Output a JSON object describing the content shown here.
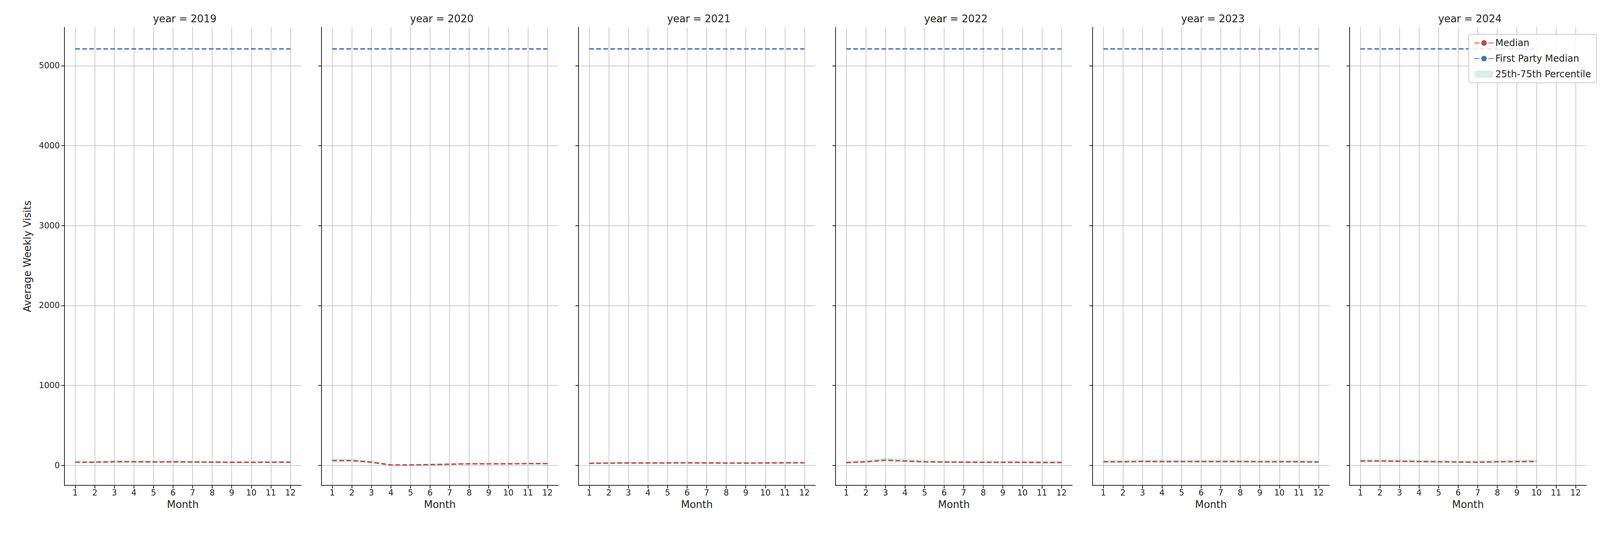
{
  "chart_data": [
    {
      "type": "line",
      "title": "year = 2019",
      "xlabel": "Month",
      "ylabel": "Average Weekly Visits",
      "x": [
        1,
        2,
        3,
        4,
        5,
        6,
        7,
        8,
        9,
        10,
        11,
        12
      ],
      "series": [
        {
          "name": "Median",
          "color": "#c8464b",
          "line_style": "dashed",
          "values": [
            40,
            40,
            45,
            45,
            43,
            45,
            42,
            40,
            38,
            38,
            40,
            40
          ]
        },
        {
          "name": "First Party Median",
          "color": "#4a72b2",
          "line_style": "dashed",
          "values": [
            5210,
            5210,
            5210,
            5210,
            5210,
            5210,
            5210,
            5210,
            5210,
            5210,
            5210,
            5210
          ]
        },
        {
          "name": "25th-75th Percentile",
          "type": "area",
          "color": "#a8dcd1",
          "lower": [
            25,
            25,
            28,
            28,
            27,
            28,
            26,
            25,
            24,
            24,
            25,
            25
          ],
          "upper": [
            60,
            60,
            65,
            65,
            63,
            65,
            62,
            60,
            58,
            58,
            60,
            60
          ]
        }
      ],
      "xlim": [
        0.45,
        12.55
      ],
      "ylim": [
        -250,
        5480
      ],
      "xticks": [
        1,
        2,
        3,
        4,
        5,
        6,
        7,
        8,
        9,
        10,
        11,
        12
      ],
      "yticks": [
        0,
        1000,
        2000,
        3000,
        4000,
        5000
      ],
      "grid": true
    },
    {
      "type": "line",
      "title": "year = 2020",
      "xlabel": "Month",
      "x": [
        1,
        2,
        3,
        4,
        5,
        6,
        7,
        8,
        9,
        10,
        11,
        12
      ],
      "series": [
        {
          "name": "Median",
          "color": "#c8464b",
          "line_style": "dashed",
          "values": [
            60,
            60,
            40,
            5,
            5,
            10,
            15,
            20,
            20,
            20,
            22,
            22
          ]
        },
        {
          "name": "First Party Median",
          "color": "#4a72b2",
          "line_style": "dashed",
          "values": [
            5210,
            5210,
            5210,
            5210,
            5210,
            5210,
            5210,
            5210,
            5210,
            5210,
            5210,
            5210
          ]
        },
        {
          "name": "25th-75th Percentile",
          "type": "area",
          "color": "#a8dcd1",
          "lower": [
            40,
            40,
            25,
            0,
            0,
            3,
            8,
            12,
            12,
            12,
            13,
            13
          ],
          "upper": [
            85,
            85,
            60,
            12,
            12,
            20,
            25,
            30,
            30,
            30,
            32,
            32
          ]
        }
      ],
      "xlim": [
        0.45,
        12.55
      ],
      "ylim": [
        -250,
        5480
      ],
      "xticks": [
        1,
        2,
        3,
        4,
        5,
        6,
        7,
        8,
        9,
        10,
        11,
        12
      ],
      "yticks": [
        0,
        1000,
        2000,
        3000,
        4000,
        5000
      ],
      "grid": true,
      "tick_labels": "x"
    },
    {
      "type": "line",
      "title": "year = 2021",
      "xlabel": "Month",
      "x": [
        1,
        2,
        3,
        4,
        5,
        6,
        7,
        8,
        9,
        10,
        11,
        12
      ],
      "series": [
        {
          "name": "Median",
          "color": "#c8464b",
          "line_style": "dashed",
          "values": [
            25,
            28,
            30,
            30,
            30,
            32,
            30,
            28,
            28,
            30,
            32,
            32
          ]
        },
        {
          "name": "First Party Median",
          "color": "#4a72b2",
          "line_style": "dashed",
          "values": [
            5210,
            5210,
            5210,
            5210,
            5210,
            5210,
            5210,
            5210,
            5210,
            5210,
            5210,
            5210
          ]
        },
        {
          "name": "25th-75th Percentile",
          "type": "area",
          "color": "#a8dcd1",
          "lower": [
            15,
            17,
            18,
            18,
            18,
            20,
            18,
            17,
            17,
            18,
            20,
            20
          ],
          "upper": [
            40,
            45,
            48,
            48,
            48,
            50,
            48,
            45,
            45,
            48,
            50,
            50
          ]
        }
      ],
      "xlim": [
        0.45,
        12.55
      ],
      "ylim": [
        -250,
        5480
      ],
      "xticks": [
        1,
        2,
        3,
        4,
        5,
        6,
        7,
        8,
        9,
        10,
        11,
        12
      ],
      "yticks": [
        0,
        1000,
        2000,
        3000,
        4000,
        5000
      ],
      "grid": true,
      "tick_labels": "x"
    },
    {
      "type": "line",
      "title": "year = 2022",
      "xlabel": "Month",
      "x": [
        1,
        2,
        3,
        4,
        5,
        6,
        7,
        8,
        9,
        10,
        11,
        12
      ],
      "series": [
        {
          "name": "Median",
          "color": "#c8464b",
          "line_style": "dashed",
          "values": [
            35,
            45,
            65,
            55,
            45,
            42,
            40,
            38,
            38,
            38,
            36,
            36
          ]
        },
        {
          "name": "First Party Median",
          "color": "#4a72b2",
          "line_style": "dashed",
          "values": [
            5210,
            5210,
            5210,
            5210,
            5210,
            5210,
            5210,
            5210,
            5210,
            5210,
            5210,
            5210
          ]
        },
        {
          "name": "25th-75th Percentile",
          "type": "area",
          "color": "#a8dcd1",
          "lower": [
            22,
            28,
            42,
            35,
            28,
            26,
            25,
            24,
            24,
            24,
            22,
            22
          ],
          "upper": [
            55,
            70,
            95,
            85,
            70,
            65,
            62,
            60,
            60,
            60,
            58,
            58
          ]
        }
      ],
      "xlim": [
        0.45,
        12.55
      ],
      "ylim": [
        -250,
        5480
      ],
      "xticks": [
        1,
        2,
        3,
        4,
        5,
        6,
        7,
        8,
        9,
        10,
        11,
        12
      ],
      "yticks": [
        0,
        1000,
        2000,
        3000,
        4000,
        5000
      ],
      "grid": true,
      "tick_labels": "x"
    },
    {
      "type": "line",
      "title": "year = 2023",
      "xlabel": "Month",
      "x": [
        1,
        2,
        3,
        4,
        5,
        6,
        7,
        8,
        9,
        10,
        11,
        12
      ],
      "series": [
        {
          "name": "Median",
          "color": "#c8464b",
          "line_style": "dashed",
          "values": [
            45,
            45,
            50,
            48,
            48,
            48,
            48,
            48,
            46,
            46,
            45,
            42
          ]
        },
        {
          "name": "First Party Median",
          "color": "#4a72b2",
          "line_style": "dashed",
          "values": [
            5210,
            5210,
            5210,
            5210,
            5210,
            5210,
            5210,
            5210,
            5210,
            5210,
            5210,
            5210
          ]
        },
        {
          "name": "25th-75th Percentile",
          "type": "area",
          "color": "#a8dcd1",
          "lower": [
            28,
            28,
            32,
            30,
            30,
            30,
            30,
            30,
            29,
            29,
            28,
            26
          ],
          "upper": [
            70,
            70,
            75,
            72,
            72,
            72,
            72,
            72,
            70,
            70,
            70,
            65
          ]
        }
      ],
      "xlim": [
        0.45,
        12.55
      ],
      "ylim": [
        -250,
        5480
      ],
      "xticks": [
        1,
        2,
        3,
        4,
        5,
        6,
        7,
        8,
        9,
        10,
        11,
        12
      ],
      "yticks": [
        0,
        1000,
        2000,
        3000,
        4000,
        5000
      ],
      "grid": true,
      "tick_labels": "x"
    },
    {
      "type": "line",
      "title": "year = 2024",
      "xlabel": "Month",
      "x": [
        1,
        2,
        3,
        4,
        5,
        6,
        7,
        8,
        9,
        10,
        11,
        12
      ],
      "series": [
        {
          "name": "Median",
          "color": "#c8464b",
          "line_style": "dashed",
          "values": [
            55,
            55,
            52,
            48,
            45,
            42,
            40,
            45,
            48,
            50,
            null,
            null
          ]
        },
        {
          "name": "First Party Median",
          "color": "#4a72b2",
          "line_style": "dashed",
          "values": [
            5210,
            5210,
            5210,
            5210,
            5210,
            5210,
            5210,
            5210,
            5210,
            5210,
            null,
            null
          ]
        },
        {
          "name": "25th-75th Percentile",
          "type": "area",
          "color": "#a8dcd1",
          "lower": [
            35,
            35,
            33,
            30,
            28,
            26,
            25,
            28,
            30,
            32,
            null,
            null
          ],
          "upper": [
            80,
            80,
            78,
            72,
            68,
            65,
            62,
            68,
            72,
            75,
            null,
            null
          ]
        }
      ],
      "xlim": [
        0.45,
        12.55
      ],
      "ylim": [
        -250,
        5480
      ],
      "xticks": [
        1,
        2,
        3,
        4,
        5,
        6,
        7,
        8,
        9,
        10,
        11,
        12
      ],
      "yticks": [
        0,
        1000,
        2000,
        3000,
        4000,
        5000
      ],
      "grid": true,
      "tick_labels": "x",
      "legend": "upper right"
    }
  ]
}
